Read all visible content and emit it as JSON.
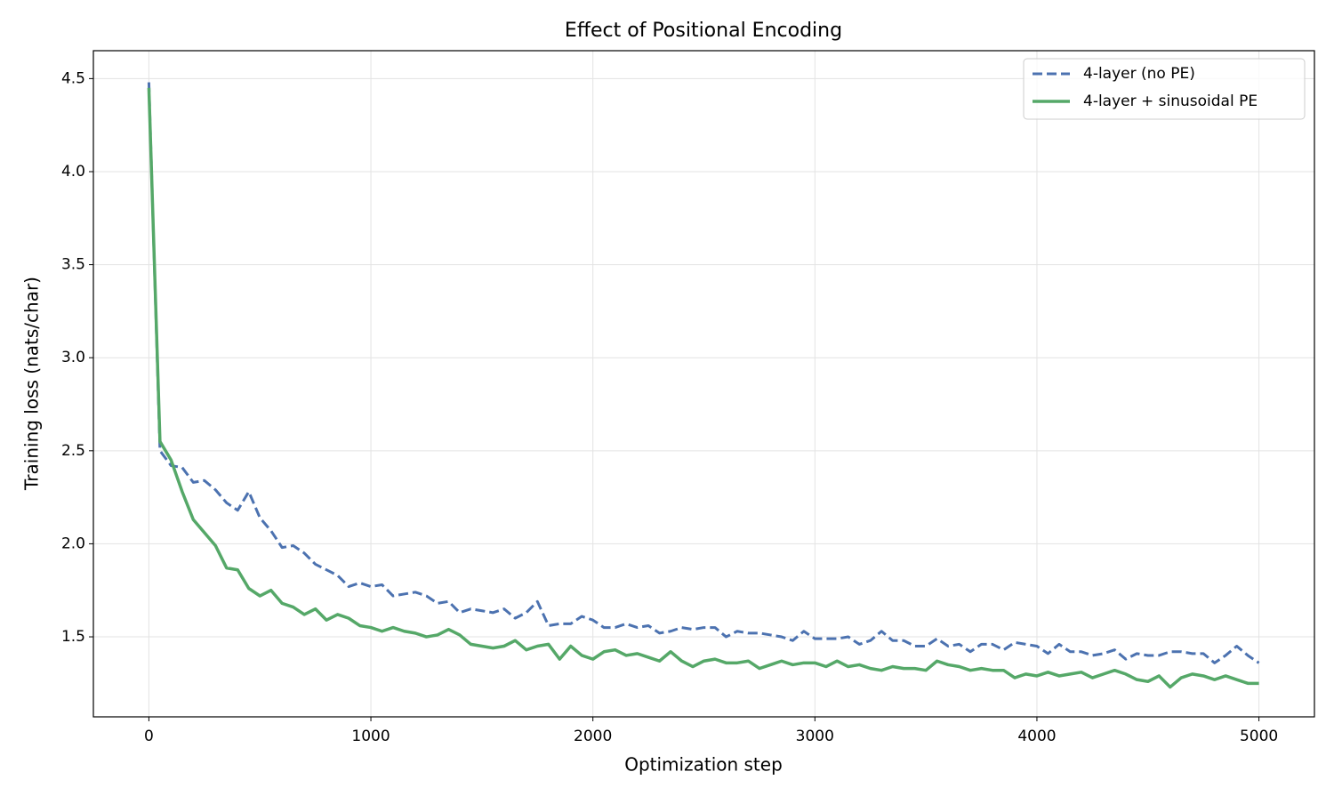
{
  "chart_data": {
    "type": "line",
    "title": "Effect of Positional Encoding",
    "xlabel": "Optimization step",
    "ylabel": "Training loss (nats/char)",
    "x": [
      0,
      50,
      100,
      150,
      200,
      250,
      300,
      350,
      400,
      450,
      500,
      550,
      600,
      650,
      700,
      750,
      800,
      850,
      900,
      950,
      1000,
      1050,
      1100,
      1150,
      1200,
      1250,
      1300,
      1350,
      1400,
      1450,
      1500,
      1550,
      1600,
      1650,
      1700,
      1750,
      1800,
      1850,
      1900,
      1950,
      2000,
      2050,
      2100,
      2150,
      2200,
      2250,
      2300,
      2350,
      2400,
      2450,
      2500,
      2550,
      2600,
      2650,
      2700,
      2750,
      2800,
      2850,
      2900,
      2950,
      3000,
      3050,
      3100,
      3150,
      3200,
      3250,
      3300,
      3350,
      3400,
      3450,
      3500,
      3550,
      3600,
      3650,
      3700,
      3750,
      3800,
      3850,
      3900,
      3950,
      4000,
      4050,
      4100,
      4150,
      4200,
      4250,
      4300,
      4350,
      4400,
      4450,
      4500,
      4550,
      4600,
      4650,
      4700,
      4750,
      4800,
      4850,
      4900,
      4950,
      5000
    ],
    "series": [
      {
        "name": "4-layer (no PE)",
        "color": "#4c72b0",
        "dashed": true,
        "values": [
          4.48,
          2.5,
          2.42,
          2.41,
          2.33,
          2.34,
          2.29,
          2.22,
          2.18,
          2.28,
          2.14,
          2.07,
          1.98,
          1.99,
          1.95,
          1.89,
          1.86,
          1.83,
          1.77,
          1.79,
          1.77,
          1.78,
          1.72,
          1.73,
          1.74,
          1.72,
          1.68,
          1.69,
          1.63,
          1.65,
          1.64,
          1.63,
          1.65,
          1.6,
          1.63,
          1.69,
          1.56,
          1.57,
          1.57,
          1.61,
          1.59,
          1.55,
          1.55,
          1.57,
          1.55,
          1.56,
          1.52,
          1.53,
          1.55,
          1.54,
          1.55,
          1.55,
          1.5,
          1.53,
          1.52,
          1.52,
          1.51,
          1.5,
          1.48,
          1.53,
          1.49,
          1.49,
          1.49,
          1.5,
          1.46,
          1.48,
          1.53,
          1.48,
          1.48,
          1.45,
          1.45,
          1.49,
          1.45,
          1.46,
          1.42,
          1.46,
          1.46,
          1.43,
          1.47,
          1.46,
          1.45,
          1.41,
          1.46,
          1.42,
          1.42,
          1.4,
          1.41,
          1.43,
          1.38,
          1.41,
          1.4,
          1.4,
          1.42,
          1.42,
          1.41,
          1.41,
          1.36,
          1.4,
          1.45,
          1.4,
          1.36
        ]
      },
      {
        "name": "4-layer + sinusoidal PE",
        "color": "#55a868",
        "dashed": false,
        "values": [
          4.45,
          2.55,
          2.45,
          2.28,
          2.13,
          2.06,
          1.99,
          1.87,
          1.86,
          1.76,
          1.72,
          1.75,
          1.68,
          1.66,
          1.62,
          1.65,
          1.59,
          1.62,
          1.6,
          1.56,
          1.55,
          1.53,
          1.55,
          1.53,
          1.52,
          1.5,
          1.51,
          1.54,
          1.51,
          1.46,
          1.45,
          1.44,
          1.45,
          1.48,
          1.43,
          1.45,
          1.46,
          1.38,
          1.45,
          1.4,
          1.38,
          1.42,
          1.43,
          1.4,
          1.41,
          1.39,
          1.37,
          1.42,
          1.37,
          1.34,
          1.37,
          1.38,
          1.36,
          1.36,
          1.37,
          1.33,
          1.35,
          1.37,
          1.35,
          1.36,
          1.36,
          1.34,
          1.37,
          1.34,
          1.35,
          1.33,
          1.32,
          1.34,
          1.33,
          1.33,
          1.32,
          1.37,
          1.35,
          1.34,
          1.32,
          1.33,
          1.32,
          1.32,
          1.28,
          1.3,
          1.29,
          1.31,
          1.29,
          1.3,
          1.31,
          1.28,
          1.3,
          1.32,
          1.3,
          1.27,
          1.26,
          1.29,
          1.23,
          1.28,
          1.3,
          1.29,
          1.27,
          1.29,
          1.27,
          1.25,
          1.25
        ]
      }
    ],
    "xlim": [
      -250,
      5250
    ],
    "ylim": [
      1.07,
      4.65
    ],
    "xticks": [
      0,
      1000,
      2000,
      3000,
      4000,
      5000
    ],
    "yticks": [
      1.5,
      {
        "value": 2,
        "label": "2.0"
      },
      2.5,
      {
        "value": 3,
        "label": "3.0"
      },
      3.5,
      {
        "value": 4,
        "label": "4.0"
      },
      4.5
    ],
    "grid": true,
    "legend": "upper right"
  }
}
